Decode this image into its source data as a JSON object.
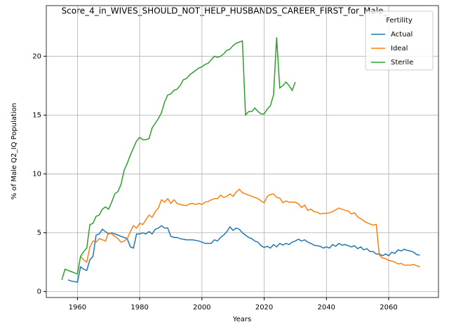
{
  "chart_data": {
    "type": "line",
    "title": "Score_4_in_WIVES_SHOULD_NOT_HELP_HUSBANDS_CAREER_FIRST_for_Male_",
    "x_label": "Years",
    "y_label": "% of Male Q2_IQ Population",
    "legend_title": "Fertility",
    "legend_loc": "upper right",
    "grid": true,
    "xlim": [
      1950,
      2076
    ],
    "ylim": [
      -0.5,
      24.3
    ],
    "xticks": [
      1960,
      1980,
      2000,
      2020,
      2040,
      2060
    ],
    "yticks": [
      0,
      5,
      10,
      15,
      20
    ],
    "x": [
      1955,
      1956,
      1957,
      1958,
      1959,
      1960,
      1961,
      1962,
      1963,
      1964,
      1965,
      1966,
      1967,
      1968,
      1969,
      1970,
      1971,
      1972,
      1973,
      1974,
      1975,
      1976,
      1977,
      1978,
      1979,
      1980,
      1981,
      1982,
      1983,
      1984,
      1985,
      1986,
      1987,
      1988,
      1989,
      1990,
      1991,
      1992,
      1993,
      1994,
      1995,
      1996,
      1997,
      1998,
      1999,
      2000,
      2001,
      2002,
      2003,
      2004,
      2005,
      2006,
      2007,
      2008,
      2009,
      2010,
      2011,
      2012,
      2013,
      2014,
      2015,
      2016,
      2017,
      2018,
      2019,
      2020,
      2021,
      2022,
      2023,
      2024,
      2025,
      2026,
      2027,
      2028,
      2029,
      2030,
      2031,
      2032,
      2033,
      2034,
      2035,
      2036,
      2037,
      2038,
      2039,
      2040,
      2041,
      2042,
      2043,
      2044,
      2045,
      2046,
      2047,
      2048,
      2049,
      2050,
      2051,
      2052,
      2053,
      2054,
      2055,
      2056,
      2057,
      2058,
      2059,
      2060,
      2061,
      2062,
      2063,
      2064,
      2065,
      2066,
      2067,
      2068,
      2069,
      2070
    ],
    "series": [
      {
        "name": "Actual",
        "color": "#1f77b4",
        "values": [
          null,
          null,
          1.0,
          0.9,
          0.85,
          0.8,
          2.1,
          1.9,
          1.8,
          2.7,
          3.0,
          4.8,
          4.9,
          5.3,
          5.1,
          4.9,
          5.0,
          4.9,
          4.8,
          4.7,
          4.6,
          4.5,
          3.8,
          3.7,
          4.9,
          4.9,
          5.0,
          4.9,
          5.1,
          4.9,
          5.3,
          5.4,
          5.6,
          5.4,
          5.4,
          4.7,
          4.6,
          4.6,
          4.5,
          4.45,
          4.4,
          4.4,
          4.4,
          4.35,
          4.3,
          4.2,
          4.1,
          4.1,
          4.1,
          4.4,
          4.3,
          4.6,
          4.8,
          5.1,
          5.5,
          5.2,
          5.4,
          5.3,
          5.0,
          4.8,
          4.6,
          4.5,
          4.3,
          4.2,
          3.9,
          3.75,
          3.85,
          3.7,
          4.0,
          3.8,
          4.1,
          3.95,
          4.1,
          4.0,
          4.2,
          4.3,
          4.45,
          4.3,
          4.4,
          4.2,
          4.1,
          3.95,
          3.9,
          3.85,
          3.7,
          3.8,
          3.7,
          4.0,
          3.85,
          4.1,
          3.95,
          4.0,
          3.9,
          3.8,
          3.9,
          3.65,
          3.8,
          3.55,
          3.65,
          3.4,
          3.4,
          3.2,
          3.2,
          3.05,
          3.2,
          3.05,
          3.35,
          3.25,
          3.55,
          3.45,
          3.6,
          3.5,
          3.45,
          3.35,
          3.15,
          3.1
        ]
      },
      {
        "name": "Ideal",
        "color": "#ff7f0e",
        "values": [
          null,
          null,
          null,
          null,
          null,
          null,
          3.0,
          2.7,
          2.5,
          3.8,
          4.3,
          4.2,
          4.5,
          4.4,
          4.3,
          5.0,
          4.9,
          4.7,
          4.5,
          4.2,
          4.3,
          4.5,
          5.1,
          5.6,
          5.4,
          5.8,
          5.7,
          6.1,
          6.5,
          6.3,
          6.8,
          7.1,
          7.8,
          7.6,
          7.9,
          7.5,
          7.8,
          7.5,
          7.4,
          7.35,
          7.3,
          7.45,
          7.5,
          7.4,
          7.5,
          7.4,
          7.6,
          7.65,
          7.8,
          7.9,
          7.9,
          8.2,
          8.0,
          8.1,
          8.3,
          8.1,
          8.45,
          8.7,
          8.4,
          8.3,
          8.2,
          8.1,
          8.0,
          7.9,
          7.7,
          7.55,
          8.1,
          8.25,
          8.3,
          8.0,
          7.95,
          7.55,
          7.7,
          7.6,
          7.6,
          7.6,
          7.45,
          7.15,
          7.35,
          6.9,
          7.0,
          6.8,
          6.75,
          6.6,
          6.65,
          6.65,
          6.7,
          6.8,
          6.95,
          7.1,
          7.0,
          6.9,
          6.85,
          6.6,
          6.7,
          6.35,
          6.2,
          6.0,
          5.85,
          5.75,
          5.65,
          5.7,
          3.1,
          2.85,
          2.8,
          2.65,
          2.6,
          2.5,
          2.35,
          2.4,
          2.25,
          2.25,
          2.25,
          2.3,
          2.2,
          2.1
        ]
      },
      {
        "name": "Sterile",
        "color": "#2ca02c",
        "values": [
          1.0,
          1.9,
          1.8,
          1.7,
          1.6,
          1.5,
          3.0,
          3.4,
          3.7,
          5.7,
          5.8,
          6.4,
          6.5,
          7.0,
          7.2,
          7.0,
          7.6,
          8.3,
          8.5,
          9.1,
          10.3,
          10.9,
          11.6,
          12.2,
          12.8,
          13.1,
          12.9,
          12.9,
          13.0,
          13.9,
          14.3,
          14.7,
          15.2,
          16.1,
          16.7,
          16.8,
          17.1,
          17.2,
          17.5,
          18.0,
          18.1,
          18.4,
          18.6,
          18.8,
          19.0,
          19.1,
          19.3,
          19.4,
          19.7,
          20.0,
          19.9,
          20.0,
          20.2,
          20.5,
          20.6,
          20.9,
          21.1,
          21.2,
          21.3,
          15.0,
          15.3,
          15.3,
          15.6,
          15.3,
          15.1,
          15.1,
          15.5,
          15.8,
          16.7,
          21.6,
          17.3,
          17.5,
          17.8,
          17.5,
          17.1,
          17.8,
          null,
          null,
          null,
          null,
          null,
          null,
          null,
          null,
          null,
          null,
          null,
          null,
          null,
          null,
          null,
          null,
          null,
          null,
          null,
          null,
          null,
          null,
          null,
          null,
          null,
          null,
          null,
          null,
          null,
          null,
          null,
          null,
          null,
          null,
          null,
          null,
          null,
          null,
          null,
          null
        ]
      }
    ]
  }
}
